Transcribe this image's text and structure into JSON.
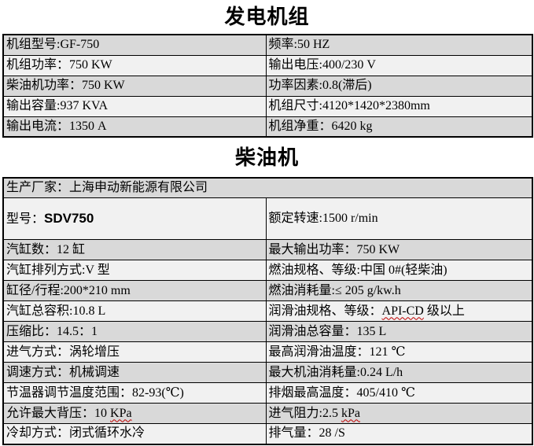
{
  "titles": {
    "generator": "发电机组",
    "diesel": "柴油机"
  },
  "colors": {
    "row_dark": "#d9d9d9",
    "row_light": "#f1f1f1",
    "border": "#000000",
    "spellcheck_underline": "#c00000"
  },
  "generator_table": {
    "rows": [
      {
        "left": "机组型号:GF-750",
        "right": "频率:50 HZ"
      },
      {
        "left": "机组功率：750 KW",
        "right": "输出电压:400/230 V"
      },
      {
        "left": "柴油机功率：750 KW",
        "right": "功率因素:0.8(滞后)"
      },
      {
        "left": "输出容量:937 KVA",
        "right": "机组尺寸:4120*1420*2380mm"
      },
      {
        "left": "输出电流：1350 A",
        "right": "机组净重：6420 kg"
      }
    ]
  },
  "diesel_table": {
    "manufacturer": "生产厂家：上海申动新能源有限公司",
    "model_label": "型号：",
    "model_value": "SDV750",
    "rated_speed": "额定转速:1500 r/min",
    "rows": [
      {
        "left": "汽缸数：12 缸",
        "right": "最大输出功率：750 KW"
      },
      {
        "left": "汽缸排列方式:V 型",
        "right": "燃油规格、等级:中国 0#(轻柴油)"
      },
      {
        "left": "缸径/行程:200*210 mm",
        "right": "燃油消耗量:≤ 205 g/kw.h"
      },
      {
        "left": "汽缸总容积:10.8 L",
        "right_pre": "润滑油规格、等级：",
        "right_misspelled": "API-CD",
        "right_post": " 级以上"
      },
      {
        "left": "压缩比：14.5：1",
        "right": "润滑油总容量：135 L"
      },
      {
        "left": "进气方式：涡轮增压",
        "right": "最高润滑油温度：121 ℃"
      },
      {
        "left": "调速方式：机械调速",
        "right": "最大机油消耗量:0.24 L/h"
      },
      {
        "left": "节温器调节温度范围：82-93(℃)",
        "right": "排烟最高温度：405/410 ℃"
      },
      {
        "left_pre": "允许最大背压：10 ",
        "left_misspelled": "KPa",
        "left_post": "",
        "right_pre": "进气阻力:2.5 ",
        "right_misspelled": "kPa",
        "right_post": ""
      },
      {
        "left": "冷却方式：闭式循环水冷",
        "right": "排气量：28 /S"
      }
    ]
  }
}
